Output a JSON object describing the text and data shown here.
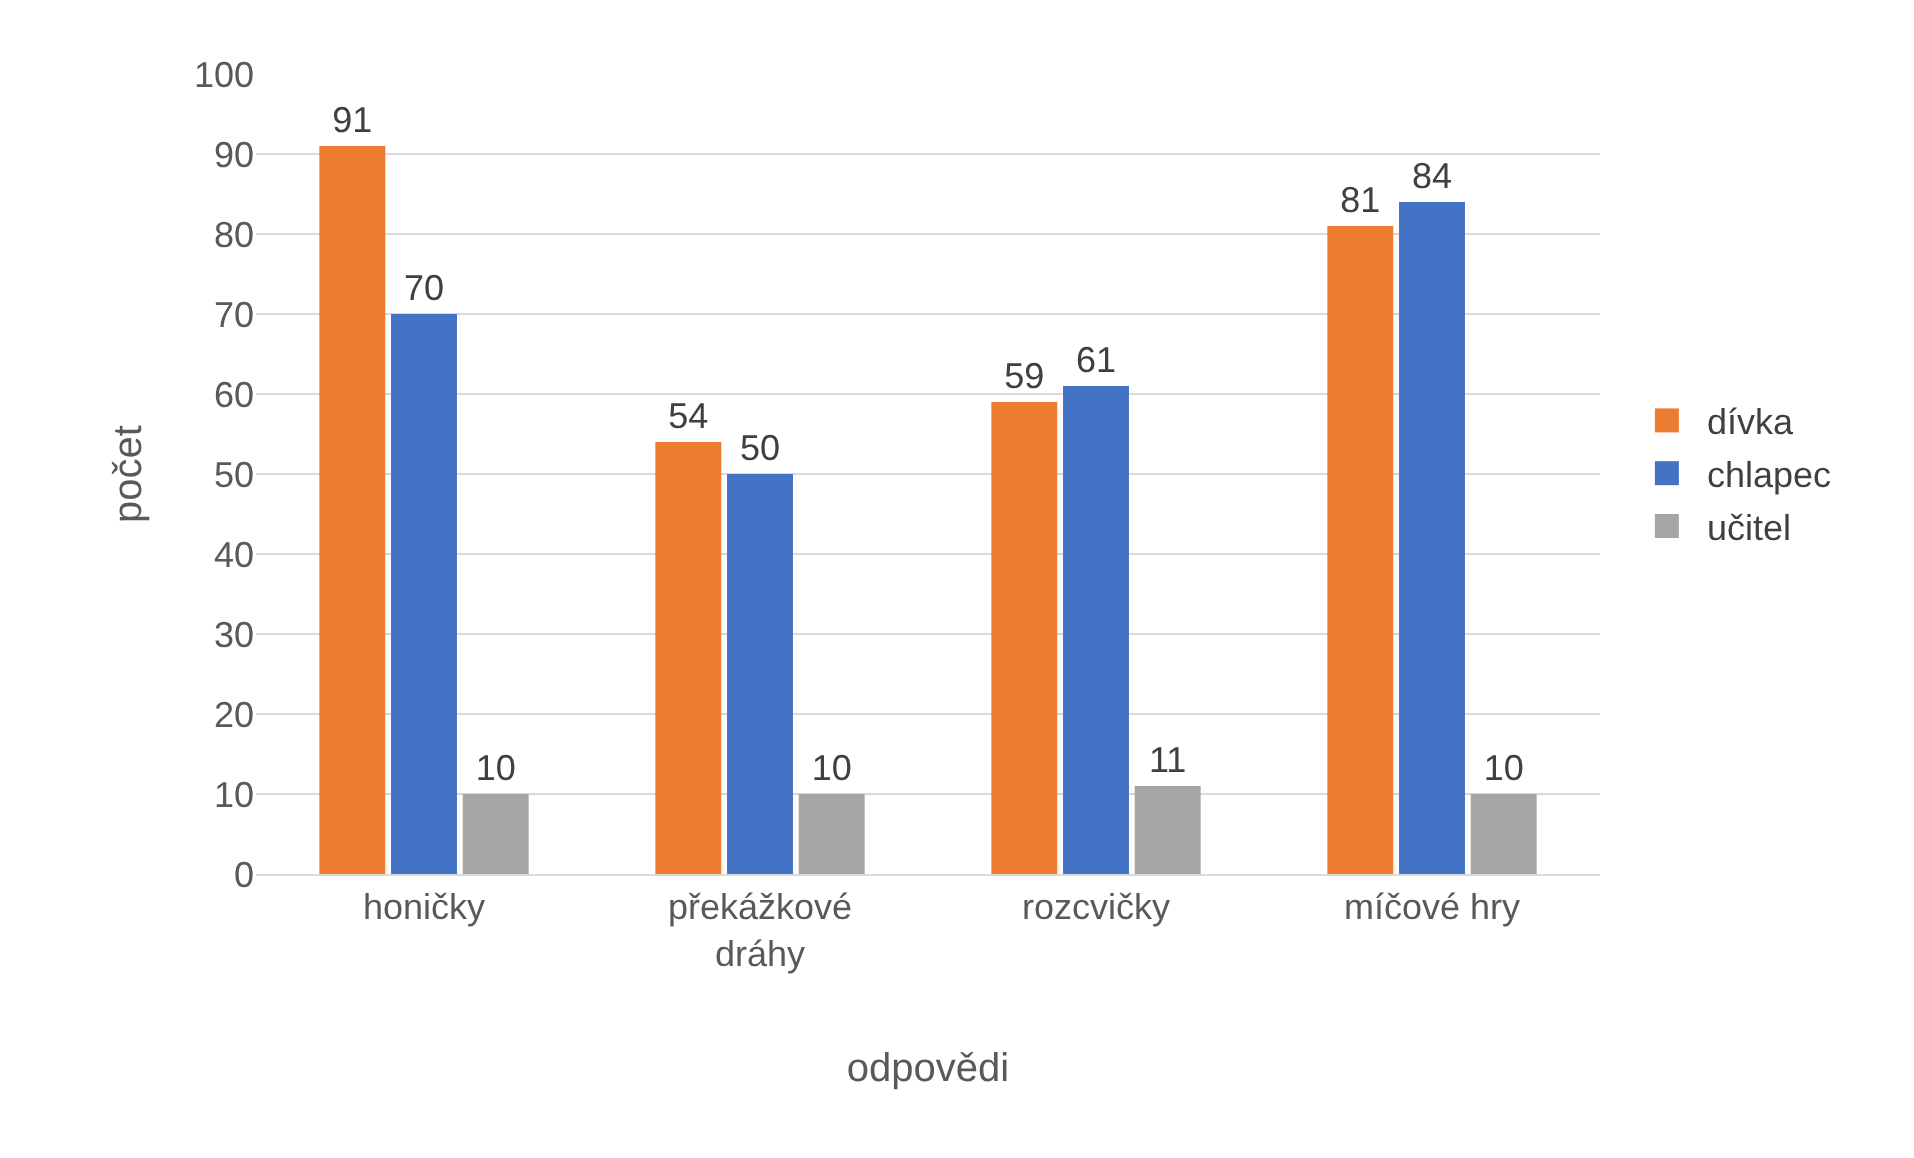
{
  "chart_data": {
    "type": "bar",
    "xlabel": "odpovědi",
    "ylabel": "počet",
    "categories": [
      "honičky",
      "překážkové dráhy",
      "rozcvičky",
      "míčové hry"
    ],
    "series": [
      {
        "name": "dívka",
        "color": "#ed7d31",
        "values": [
          91,
          54,
          59,
          81
        ]
      },
      {
        "name": "chlapec",
        "color": "#4472c4",
        "values": [
          70,
          50,
          61,
          84
        ]
      },
      {
        "name": "učitel",
        "color": "#a5a5a5",
        "values": [
          10,
          10,
          11,
          10
        ]
      }
    ],
    "ylim": [
      0,
      100
    ],
    "yticks": [
      0,
      10,
      20,
      30,
      40,
      50,
      60,
      70,
      80,
      90,
      100
    ],
    "grid": "y",
    "legend": "right",
    "data_labels": true
  }
}
